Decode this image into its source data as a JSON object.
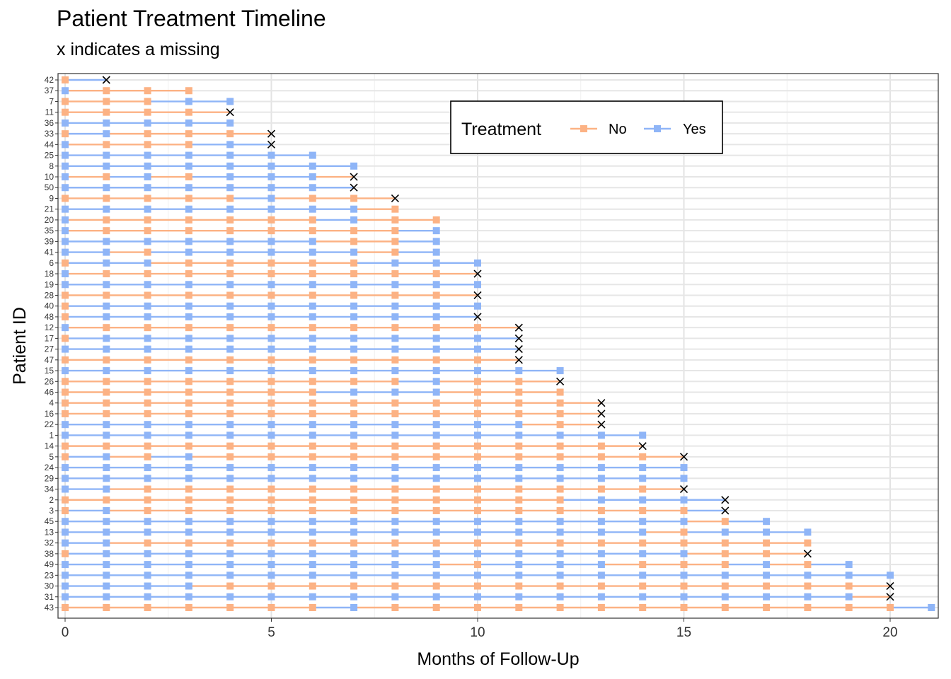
{
  "chart_data": {
    "type": "line",
    "title": "Patient Treatment Timeline",
    "subtitle": "x indicates a missing",
    "xlabel": "Months of Follow-Up",
    "ylabel": "Patient ID",
    "xlim": [
      0,
      21
    ],
    "xticks": [
      0,
      5,
      10,
      15,
      20
    ],
    "grid": true,
    "legend": {
      "title": "Treatment",
      "position": "top-right",
      "entries": [
        {
          "label": "No",
          "color": "#fcb284"
        },
        {
          "label": "Yes",
          "color": "#8fb5f7"
        }
      ]
    },
    "colors": {
      "No": "#fcb284",
      "Yes": "#8fb5f7",
      "missing": "#000000"
    },
    "patients": [
      {
        "id": "42",
        "last": 1,
        "missing": true,
        "seq": "NY"
      },
      {
        "id": "37",
        "last": 3,
        "missing": false,
        "seq": "YNNN"
      },
      {
        "id": "7",
        "last": 4,
        "missing": false,
        "seq": "NNNYY"
      },
      {
        "id": "11",
        "last": 4,
        "missing": true,
        "seq": "NNNNN"
      },
      {
        "id": "36",
        "last": 4,
        "missing": false,
        "seq": "YYYYY"
      },
      {
        "id": "33",
        "last": 5,
        "missing": true,
        "seq": "NYNNNN"
      },
      {
        "id": "44",
        "last": 5,
        "missing": true,
        "seq": "YNNNYY"
      },
      {
        "id": "25",
        "last": 6,
        "missing": false,
        "seq": "YYYYYYY"
      },
      {
        "id": "8",
        "last": 7,
        "missing": false,
        "seq": "YYYYYYYY"
      },
      {
        "id": "10",
        "last": 7,
        "missing": true,
        "seq": "YNYNYYYN"
      },
      {
        "id": "50",
        "last": 7,
        "missing": true,
        "seq": "YYYYYYYY"
      },
      {
        "id": "9",
        "last": 8,
        "missing": true,
        "seq": "NNNNNYNNN"
      },
      {
        "id": "21",
        "last": 8,
        "missing": false,
        "seq": "YYYYYYYYN"
      },
      {
        "id": "20",
        "last": 9,
        "missing": false,
        "seq": "YNNNNNNYNN"
      },
      {
        "id": "35",
        "last": 9,
        "missing": false,
        "seq": "YNNNNNNNNY"
      },
      {
        "id": "39",
        "last": 9,
        "missing": false,
        "seq": "YYYYYYYNNY"
      },
      {
        "id": "41",
        "last": 9,
        "missing": false,
        "seq": "YYNYYYYYNY"
      },
      {
        "id": "6",
        "last": 10,
        "missing": false,
        "seq": "NYYNNNNNYYY"
      },
      {
        "id": "18",
        "last": 10,
        "missing": true,
        "seq": "YNNNNNNNNNN"
      },
      {
        "id": "19",
        "last": 10,
        "missing": false,
        "seq": "YYYYYYYYYYY"
      },
      {
        "id": "28",
        "last": 10,
        "missing": true,
        "seq": "NNNNNNNNNNN"
      },
      {
        "id": "40",
        "last": 10,
        "missing": false,
        "seq": "NYYYYYYYYYY"
      },
      {
        "id": "48",
        "last": 10,
        "missing": true,
        "seq": "NYYYYYYYYYY"
      },
      {
        "id": "12",
        "last": 11,
        "missing": true,
        "seq": "YNNNNNNNNNNN"
      },
      {
        "id": "17",
        "last": 11,
        "missing": true,
        "seq": "NYYYYYYYYYYY"
      },
      {
        "id": "27",
        "last": 11,
        "missing": true,
        "seq": "YYYYYYYYYYYY"
      },
      {
        "id": "47",
        "last": 11,
        "missing": true,
        "seq": "NNNNNNNNNNNN"
      },
      {
        "id": "15",
        "last": 12,
        "missing": false,
        "seq": "YYYYYYYYYYYYY"
      },
      {
        "id": "26",
        "last": 12,
        "missing": true,
        "seq": "NNNNNNNNNYNNN"
      },
      {
        "id": "46",
        "last": 12,
        "missing": false,
        "seq": "NNNNNNNYYYNNN"
      },
      {
        "id": "4",
        "last": 13,
        "missing": true,
        "seq": "NNNNNNNNNNNNNN"
      },
      {
        "id": "16",
        "last": 13,
        "missing": true,
        "seq": "NNNNNNNNNNNNNN"
      },
      {
        "id": "22",
        "last": 13,
        "missing": true,
        "seq": "YYYYYYYYYYYYNN"
      },
      {
        "id": "1",
        "last": 14,
        "missing": false,
        "seq": "YYYYYYYYYYYYYYY"
      },
      {
        "id": "14",
        "last": 14,
        "missing": true,
        "seq": "NNNNNNNNNNNNNNN"
      },
      {
        "id": "5",
        "last": 15,
        "missing": true,
        "seq": "NYNYNNNNNNNNNNNN"
      },
      {
        "id": "24",
        "last": 15,
        "missing": false,
        "seq": "YYYYYYYYYYYYYYYY"
      },
      {
        "id": "29",
        "last": 15,
        "missing": false,
        "seq": "YYYYYYYYYYYYYYYY"
      },
      {
        "id": "34",
        "last": 15,
        "missing": true,
        "seq": "YYNNNNNNNNNNNNNN"
      },
      {
        "id": "2",
        "last": 16,
        "missing": true,
        "seq": "NNNNNNNNNNNNNYYYY"
      },
      {
        "id": "3",
        "last": 16,
        "missing": true,
        "seq": "NYNNNNNNNNNNNNNNY"
      },
      {
        "id": "45",
        "last": 17,
        "missing": false,
        "seq": "YYYYYYYYYYYYYYYYNY"
      },
      {
        "id": "13",
        "last": 18,
        "missing": false,
        "seq": "YYYYYYYYYYYYYYYNYYY"
      },
      {
        "id": "32",
        "last": 18,
        "missing": false,
        "seq": "YYNNNNNNNNNNNNNNNNN"
      },
      {
        "id": "38",
        "last": 18,
        "missing": true,
        "seq": "NYYYYYYYYYYYYYYYNNN"
      },
      {
        "id": "49",
        "last": 19,
        "missing": false,
        "seq": "YYYYYYYYYYNYYYNNNYNY"
      },
      {
        "id": "23",
        "last": 20,
        "missing": false,
        "seq": "YYYYYYYYYYYYYYYYYYYYY"
      },
      {
        "id": "30",
        "last": 20,
        "missing": true,
        "seq": "YYYYNNNNNNNNNNNNNNNNN"
      },
      {
        "id": "31",
        "last": 20,
        "missing": true,
        "seq": "YYYYYYYYYYYYYYYYYYYYN"
      },
      {
        "id": "43",
        "last": 21,
        "missing": false,
        "seq": "NNNNNNNYNNNNNNNNNNNNNY"
      }
    ]
  }
}
